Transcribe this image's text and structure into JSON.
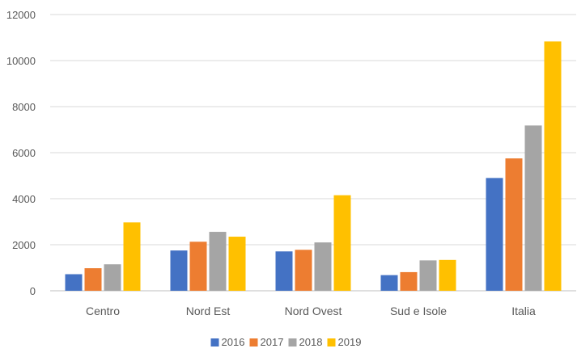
{
  "chart_data": {
    "type": "bar",
    "title": "",
    "xlabel": "",
    "ylabel": "",
    "categories": [
      "Centro",
      "Nord Est",
      "Nord Ovest",
      "Sud e Isole",
      "Italia"
    ],
    "series": [
      {
        "name": "2016",
        "color": "#4472C4",
        "values": [
          720,
          1750,
          1710,
          680,
          4900
        ]
      },
      {
        "name": "2017",
        "color": "#ED7D31",
        "values": [
          980,
          2130,
          1780,
          810,
          5750
        ]
      },
      {
        "name": "2018",
        "color": "#A5A5A5",
        "values": [
          1150,
          2560,
          2100,
          1320,
          7180
        ]
      },
      {
        "name": "2019",
        "color": "#FFC000",
        "values": [
          2970,
          2350,
          4150,
          1340,
          10830
        ]
      }
    ],
    "ylim": [
      0,
      12000
    ],
    "yticks": [
      0,
      2000,
      4000,
      6000,
      8000,
      10000,
      12000
    ],
    "ytick_labels": [
      "0",
      "2000",
      "4000",
      "6000",
      "8000",
      "10000",
      "12000"
    ],
    "grid": true,
    "legend_position": "bottom"
  }
}
